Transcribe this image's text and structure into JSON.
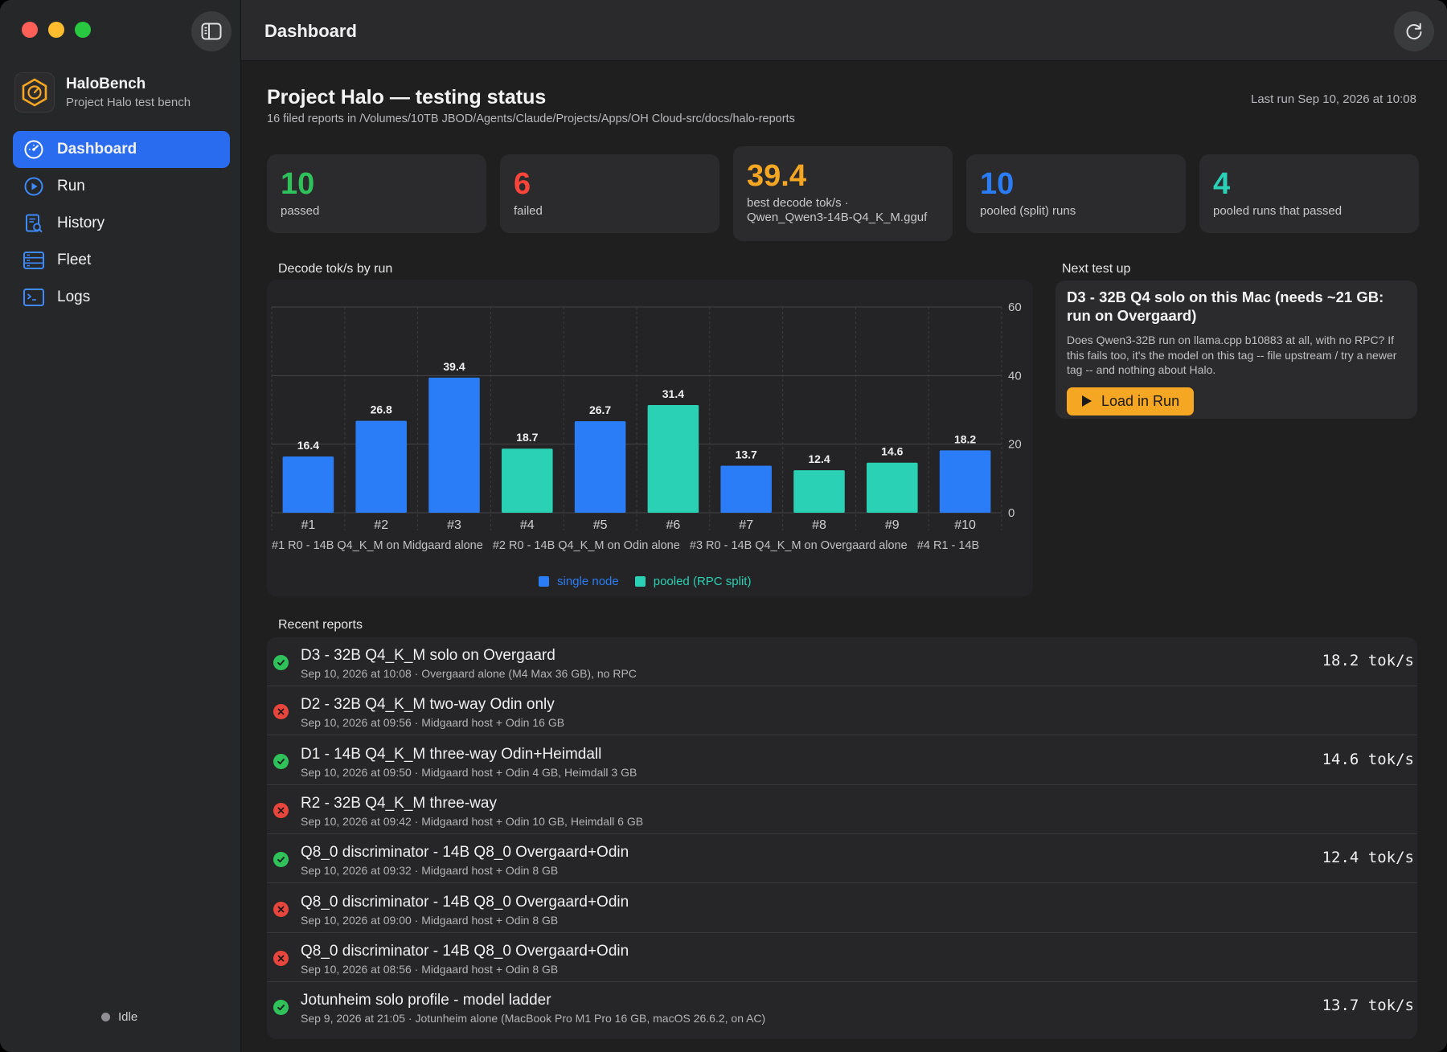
{
  "window": {
    "title": "Dashboard"
  },
  "sidebar": {
    "brand": {
      "name": "HaloBench",
      "subtitle": "Project Halo test bench"
    },
    "items": [
      {
        "label": "Dashboard",
        "icon": "gauge-icon",
        "active": true
      },
      {
        "label": "Run",
        "icon": "play-circle-icon",
        "active": false
      },
      {
        "label": "History",
        "icon": "document-search-icon",
        "active": false
      },
      {
        "label": "Fleet",
        "icon": "server-rack-icon",
        "active": false
      },
      {
        "label": "Logs",
        "icon": "terminal-icon",
        "active": false
      }
    ],
    "status": "Idle"
  },
  "header": {
    "title": "Project Halo — testing status",
    "subtitle": "16 filed reports in /Volumes/10TB JBOD/Agents/Claude/Projects/Apps/OH Cloud-src/docs/halo-reports",
    "last_run": "Last run Sep 10, 2026 at 10:08"
  },
  "stats": [
    {
      "value": "10",
      "label": "passed",
      "color": "#30c25a"
    },
    {
      "value": "6",
      "label": "failed",
      "color": "#ff453a"
    },
    {
      "value": "39.4",
      "label": "best decode tok/s ·",
      "label2": "Qwen_Qwen3-14B-Q4_K_M.gguf",
      "color": "#f5a623"
    },
    {
      "value": "10",
      "label": "pooled (split) runs",
      "color": "#2a7df6"
    },
    {
      "value": "4",
      "label": "pooled runs that passed",
      "color": "#2ad1b4"
    }
  ],
  "chart_section_label": "Decode tok/s by run",
  "chart_data": {
    "type": "bar",
    "categories": [
      "#1",
      "#2",
      "#3",
      "#4",
      "#5",
      "#6",
      "#7",
      "#8",
      "#9",
      "#10"
    ],
    "values": [
      16.4,
      26.8,
      39.4,
      18.7,
      26.7,
      31.4,
      13.7,
      12.4,
      14.6,
      18.2
    ],
    "value_labels": [
      "16.4",
      "26.8",
      "39.4",
      "18.7",
      "26.7",
      "31.4",
      "13.7",
      "12.4",
      "14.6",
      "18.2"
    ],
    "kinds": [
      "single",
      "single",
      "single",
      "pooled",
      "single",
      "pooled",
      "single",
      "pooled",
      "pooled",
      "single"
    ],
    "series": [
      {
        "name": "single node",
        "color": "#2a7df6"
      },
      {
        "name": "pooled (RPC split)",
        "color": "#2ad1b4"
      }
    ],
    "y_ticks": [
      "0",
      "20",
      "40",
      "60"
    ],
    "ylim": [
      0,
      60
    ],
    "y_axis_position": "right",
    "grid": true,
    "legend_position": "bottom-center",
    "caption": "#1 R0 - 14B Q4_K_M on Midgaard alone   #2 R0 - 14B Q4_K_M on Odin alone   #3 R0 - 14B Q4_K_M on Overgaard alone   #4 R1 - 14B"
  },
  "next_test": {
    "section_label": "Next test up",
    "title": "D3 - 32B Q4 solo on this Mac (needs ~21 GB: run on Overgaard)",
    "description": "Does Qwen3-32B run on llama.cpp b10883 at all, with no RPC? If this fails too, it's the model on this tag -- file upstream / try a newer tag -- and nothing about Halo.",
    "button_label": "Load in Run"
  },
  "reports_label": "Recent reports",
  "reports": [
    {
      "status": "pass",
      "title": "D3 - 32B Q4_K_M solo on Overgaard",
      "meta": "Sep 10, 2026 at 10:08 · Overgaard alone (M4 Max 36 GB), no RPC",
      "tok": "18.2 tok/s"
    },
    {
      "status": "fail",
      "title": "D2 - 32B Q4_K_M two-way Odin only",
      "meta": "Sep 10, 2026 at 09:56 · Midgaard host + Odin 16 GB",
      "tok": ""
    },
    {
      "status": "pass",
      "title": "D1 - 14B Q4_K_M three-way Odin+Heimdall",
      "meta": "Sep 10, 2026 at 09:50 · Midgaard host + Odin 4 GB, Heimdall 3 GB",
      "tok": "14.6 tok/s"
    },
    {
      "status": "fail",
      "title": "R2 - 32B Q4_K_M three-way",
      "meta": "Sep 10, 2026 at 09:42 · Midgaard host + Odin 10 GB, Heimdall 6 GB",
      "tok": ""
    },
    {
      "status": "pass",
      "title": "Q8_0 discriminator - 14B Q8_0 Overgaard+Odin",
      "meta": "Sep 10, 2026 at 09:32 · Midgaard host + Odin 8 GB",
      "tok": "12.4 tok/s"
    },
    {
      "status": "fail",
      "title": "Q8_0 discriminator - 14B Q8_0 Overgaard+Odin",
      "meta": "Sep 10, 2026 at 09:00 · Midgaard host + Odin 8 GB",
      "tok": ""
    },
    {
      "status": "fail",
      "title": "Q8_0 discriminator - 14B Q8_0 Overgaard+Odin",
      "meta": "Sep 10, 2026 at 08:56 · Midgaard host + Odin 8 GB",
      "tok": ""
    },
    {
      "status": "pass",
      "title": "Jotunheim solo profile - model ladder",
      "meta": "Sep 9, 2026 at 21:05 · Jotunheim alone (MacBook Pro M1 Pro 16 GB, macOS 26.6.2, on AC)",
      "tok": "13.7 tok/s"
    }
  ]
}
